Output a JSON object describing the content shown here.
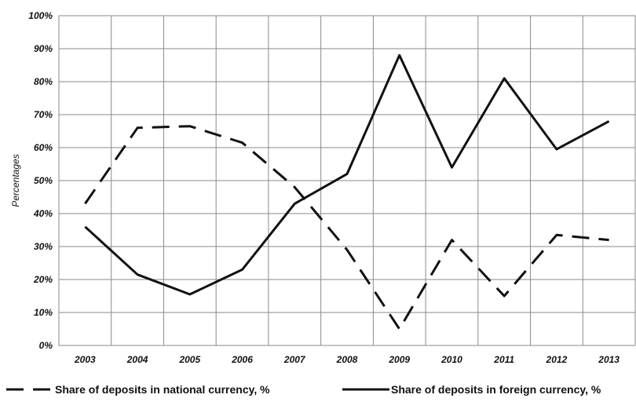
{
  "chart_data": {
    "type": "line",
    "title": "",
    "xlabel": "",
    "ylabel": "Percentages",
    "ylim": [
      0,
      100
    ],
    "y_ticks": [
      "0%",
      "10%",
      "20%",
      "30%",
      "40%",
      "50%",
      "60%",
      "70%",
      "80%",
      "90%",
      "100%"
    ],
    "categories": [
      "2003",
      "2004",
      "2005",
      "2006",
      "2007",
      "2008",
      "2009",
      "2010",
      "2011",
      "2012",
      "2013"
    ],
    "grid": true,
    "legend_position": "bottom",
    "series": [
      {
        "name": "Share of deposits in national currency, %",
        "style": "dashed",
        "color": "#111111",
        "values": [
          43,
          66,
          66.5,
          61.5,
          48,
          29,
          5,
          32,
          15,
          33.5,
          32
        ]
      },
      {
        "name": "Share of deposits in foreign currency, %",
        "style": "solid",
        "color": "#111111",
        "values": [
          36,
          21.5,
          15.5,
          23,
          43,
          52,
          88,
          54,
          81,
          59.5,
          68
        ]
      }
    ]
  }
}
